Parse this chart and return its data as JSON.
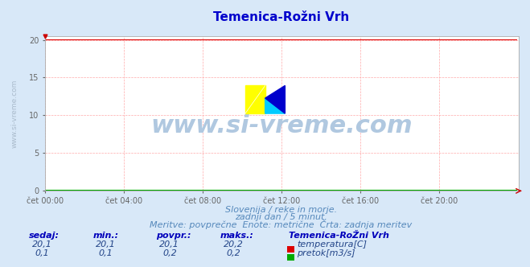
{
  "title": "Temenica-Rožni Vrh",
  "title_color": "#0000cc",
  "title_fontsize": 11,
  "bg_color": "#d8e8f8",
  "plot_bg_color": "#ffffff",
  "grid_color": "#ffaaaa",
  "xlim": [
    0,
    288
  ],
  "ylim": [
    0,
    20.5
  ],
  "yticks": [
    0,
    5,
    10,
    15,
    20
  ],
  "xtick_labels": [
    "čet 00:00",
    "čet 04:00",
    "čet 08:00",
    "čet 12:00",
    "čet 16:00",
    "čet 20:00"
  ],
  "xtick_positions": [
    0,
    48,
    96,
    144,
    192,
    240
  ],
  "temp_value": 20.1,
  "flow_value": 0.1,
  "temp_color": "#dd0000",
  "flow_color": "#00aa00",
  "watermark": "www.si-vreme.com",
  "watermark_color": "#b0c8e0",
  "watermark_fontsize": 22,
  "subtitle1": "Slovenija / reke in morje.",
  "subtitle2": "zadnji dan / 5 minut.",
  "subtitle3": "Meritve: povprečne  Enote: metrične  Črta: zadnja meritev",
  "subtitle_color": "#5588bb",
  "subtitle_fontsize": 8,
  "table_header": "Temenica-RoŽni Vrh",
  "col_headers": [
    "sedaj:",
    "min.:",
    "povpr.:",
    "maks.:"
  ],
  "col_header_color": "#0000bb",
  "row1_values": [
    "20,1",
    "20,1",
    "20,1",
    "20,2"
  ],
  "row2_values": [
    "0,1",
    "0,1",
    "0,2",
    "0,2"
  ],
  "table_value_color": "#224488",
  "table_fontsize": 8,
  "ylabel_text": "www.si-vreme.com",
  "ylabel_color": "#aabbcc",
  "ylabel_fontsize": 6.5
}
